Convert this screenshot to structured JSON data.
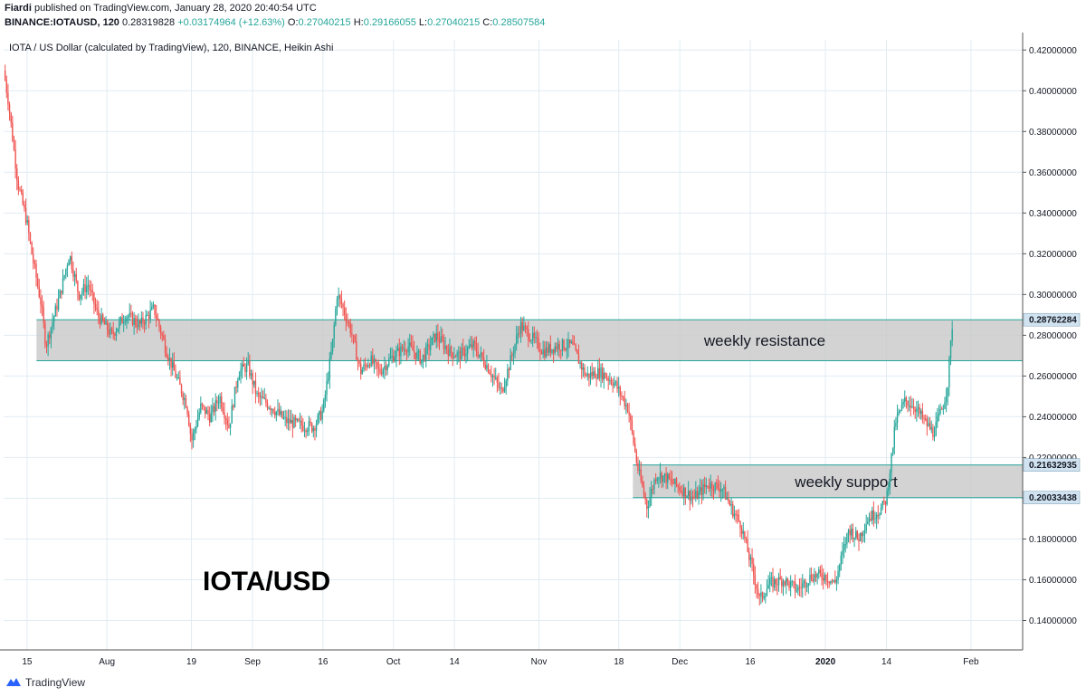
{
  "header": {
    "author": "Fiardi",
    "published": "published on TradingView.com, January 28, 2020 20:40:54 UTC",
    "symbol": "BINANCE:IOTAUSD, 120",
    "last": "0.28319828",
    "change": "+0.03174964 (+12.63%)",
    "o_label": "O:",
    "o_value": "0.27040215",
    "h_label": "H:",
    "h_value": "0.29166055",
    "l_label": "L:",
    "l_value": "0.27040215",
    "c_label": "C:",
    "c_value": "0.28507584"
  },
  "footer": {
    "brand": "TradingView"
  },
  "colors": {
    "up": "#26a69a",
    "down": "#ef5350",
    "grid": "#e1ecf2",
    "zone_fill": "#c8c8c8",
    "zone_border": "#26a69a",
    "tag_bg": "#d1e3f0"
  },
  "chart_data": {
    "type": "candlestick",
    "subtitle": "IOTA / US Dollar (calculated by TradingView), 120, BINANCE, Heikin Ashi",
    "overlay_label": "IOTA/USD",
    "grid": true,
    "ylim": [
      0.13,
      0.425
    ],
    "y_ticks": [
      "0.14000000",
      "0.16000000",
      "0.18000000",
      "0.20000000",
      "0.22000000",
      "0.24000000",
      "0.26000000",
      "0.28000000",
      "0.30000000",
      "0.32000000",
      "0.34000000",
      "0.36000000",
      "0.38000000",
      "0.40000000",
      "0.42000000"
    ],
    "x_ticks": [
      "15",
      "Aug",
      "19",
      "Sep",
      "16",
      "Oct",
      "14",
      "Nov",
      "18",
      "Dec",
      "16",
      "2020",
      "14",
      "Feb"
    ],
    "x_tick_dates": [
      "2019-07-15",
      "2019-08-01",
      "2019-08-19",
      "2019-09-01",
      "2019-09-16",
      "2019-10-01",
      "2019-10-14",
      "2019-11-01",
      "2019-11-18",
      "2019-12-01",
      "2019-12-16",
      "2020-01-01",
      "2020-01-14",
      "2020-02-01"
    ],
    "date_range": [
      "2019-07-10",
      "2020-02-12"
    ],
    "price_path": [
      [
        "2019-07-10",
        0.41
      ],
      [
        "2019-07-11",
        0.395
      ],
      [
        "2019-07-13",
        0.355
      ],
      [
        "2019-07-15",
        0.335
      ],
      [
        "2019-07-16",
        0.32
      ],
      [
        "2019-07-18",
        0.295
      ],
      [
        "2019-07-19",
        0.275
      ],
      [
        "2019-07-22",
        0.3
      ],
      [
        "2019-07-24",
        0.32
      ],
      [
        "2019-07-26",
        0.3
      ],
      [
        "2019-07-28",
        0.305
      ],
      [
        "2019-07-30",
        0.29
      ],
      [
        "2019-08-02",
        0.28
      ],
      [
        "2019-08-05",
        0.29
      ],
      [
        "2019-08-08",
        0.285
      ],
      [
        "2019-08-11",
        0.293
      ],
      [
        "2019-08-14",
        0.27
      ],
      [
        "2019-08-16",
        0.258
      ],
      [
        "2019-08-18",
        0.246
      ],
      [
        "2019-08-19",
        0.228
      ],
      [
        "2019-08-21",
        0.245
      ],
      [
        "2019-08-23",
        0.24
      ],
      [
        "2019-08-25",
        0.25
      ],
      [
        "2019-08-27",
        0.235
      ],
      [
        "2019-08-29",
        0.262
      ],
      [
        "2019-08-31",
        0.265
      ],
      [
        "2019-09-02",
        0.25
      ],
      [
        "2019-09-05",
        0.245
      ],
      [
        "2019-09-08",
        0.238
      ],
      [
        "2019-09-11",
        0.236
      ],
      [
        "2019-09-14",
        0.235
      ],
      [
        "2019-09-16",
        0.243
      ],
      [
        "2019-09-18",
        0.275
      ],
      [
        "2019-09-19",
        0.3
      ],
      [
        "2019-09-20",
        0.295
      ],
      [
        "2019-09-22",
        0.282
      ],
      [
        "2019-09-24",
        0.262
      ],
      [
        "2019-09-26",
        0.268
      ],
      [
        "2019-09-28",
        0.262
      ],
      [
        "2019-10-01",
        0.27
      ],
      [
        "2019-10-04",
        0.275
      ],
      [
        "2019-10-07",
        0.268
      ],
      [
        "2019-10-10",
        0.28
      ],
      [
        "2019-10-13",
        0.272
      ],
      [
        "2019-10-15",
        0.27
      ],
      [
        "2019-10-18",
        0.275
      ],
      [
        "2019-10-21",
        0.265
      ],
      [
        "2019-10-24",
        0.252
      ],
      [
        "2019-10-26",
        0.268
      ],
      [
        "2019-10-28",
        0.285
      ],
      [
        "2019-10-30",
        0.28
      ],
      [
        "2019-11-02",
        0.272
      ],
      [
        "2019-11-05",
        0.275
      ],
      [
        "2019-11-08",
        0.275
      ],
      [
        "2019-11-11",
        0.26
      ],
      [
        "2019-11-14",
        0.262
      ],
      [
        "2019-11-17",
        0.257
      ],
      [
        "2019-11-20",
        0.244
      ],
      [
        "2019-11-22",
        0.215
      ],
      [
        "2019-11-24",
        0.196
      ],
      [
        "2019-11-26",
        0.212
      ],
      [
        "2019-11-28",
        0.21
      ],
      [
        "2019-12-01",
        0.205
      ],
      [
        "2019-12-04",
        0.2
      ],
      [
        "2019-12-07",
        0.207
      ],
      [
        "2019-12-10",
        0.205
      ],
      [
        "2019-12-12",
        0.195
      ],
      [
        "2019-12-14",
        0.187
      ],
      [
        "2019-12-17",
        0.16
      ],
      [
        "2019-12-18",
        0.15
      ],
      [
        "2019-12-20",
        0.158
      ],
      [
        "2019-12-23",
        0.16
      ],
      [
        "2019-12-26",
        0.155
      ],
      [
        "2019-12-29",
        0.162
      ],
      [
        "2020-01-01",
        0.162
      ],
      [
        "2020-01-03",
        0.158
      ],
      [
        "2020-01-06",
        0.185
      ],
      [
        "2020-01-08",
        0.18
      ],
      [
        "2020-01-10",
        0.19
      ],
      [
        "2020-01-13",
        0.195
      ],
      [
        "2020-01-14",
        0.2
      ],
      [
        "2020-01-16",
        0.238
      ],
      [
        "2020-01-18",
        0.248
      ],
      [
        "2020-01-20",
        0.245
      ],
      [
        "2020-01-22",
        0.238
      ],
      [
        "2020-01-24",
        0.232
      ],
      [
        "2020-01-26",
        0.245
      ],
      [
        "2020-01-27",
        0.255
      ],
      [
        "2020-01-28",
        0.285
      ]
    ],
    "annotations": [
      {
        "label": "weekly resistance",
        "y_top": 0.28762284,
        "y_bottom": 0.2675,
        "x_start": "2019-07-17",
        "x_end": "2020-02-12"
      },
      {
        "label": "weekly support",
        "y_top": 0.21632935,
        "y_bottom": 0.20033438,
        "x_start": "2019-11-21",
        "x_end": "2020-02-12"
      }
    ],
    "price_tags": [
      "0.28762284",
      "0.21632935",
      "0.20033438"
    ],
    "price_tag_values": [
      0.28762284,
      0.21632935,
      0.20033438
    ]
  }
}
